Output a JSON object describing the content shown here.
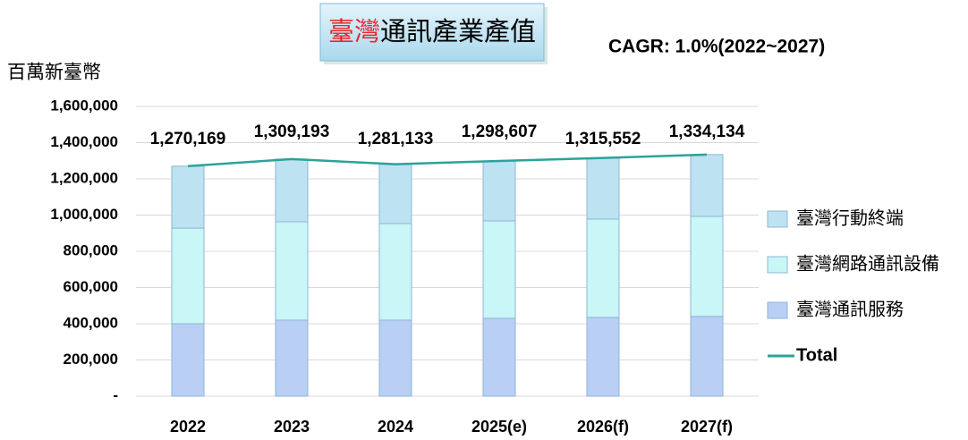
{
  "chart_data": {
    "type": "bar",
    "stacked": true,
    "title": {
      "highlight": "臺灣",
      "rest": "通訊產業產值"
    },
    "annotation": "CAGR: 1.0%(2022~2027)",
    "y_label": "百萬新臺幣",
    "categories": [
      "2022",
      "2023",
      "2024",
      "2025(e)",
      "2026(f)",
      "2027(f)"
    ],
    "series": [
      {
        "name": "臺灣通訊服務",
        "color": "#b9cff4",
        "values": [
          400000,
          420000,
          420000,
          430000,
          435000,
          440000
        ]
      },
      {
        "name": "臺灣網路通訊設備",
        "color": "#c9f6f6",
        "values": [
          528000,
          543000,
          533000,
          538000,
          543000,
          553000
        ]
      },
      {
        "name": "臺灣行動終端",
        "color": "#bde2f1",
        "values": [
          342169,
          346193,
          328133,
          330607,
          337552,
          341134
        ]
      },
      {
        "name": "Total",
        "type": "line",
        "color": "#2aa39a",
        "values": [
          1270169,
          1309193,
          1281133,
          1298607,
          1315552,
          1334134
        ],
        "value_labels": [
          "1,270,169",
          "1,309,193",
          "1,281,133",
          "1,298,607",
          "1,315,552",
          "1,334,134"
        ]
      }
    ],
    "ylim": [
      0,
      1600000
    ],
    "yticks": [
      {
        "value": 0,
        "label": "-"
      },
      {
        "value": 200000,
        "label": "200,000"
      },
      {
        "value": 400000,
        "label": "400,000"
      },
      {
        "value": 600000,
        "label": "600,000"
      },
      {
        "value": 800000,
        "label": "800,000"
      },
      {
        "value": 1000000,
        "label": "1,000,000"
      },
      {
        "value": 1200000,
        "label": "1,200,000"
      },
      {
        "value": 1400000,
        "label": "1,400,000"
      },
      {
        "value": 1600000,
        "label": "1,600,000"
      }
    ],
    "grid": true,
    "legend": "right"
  }
}
